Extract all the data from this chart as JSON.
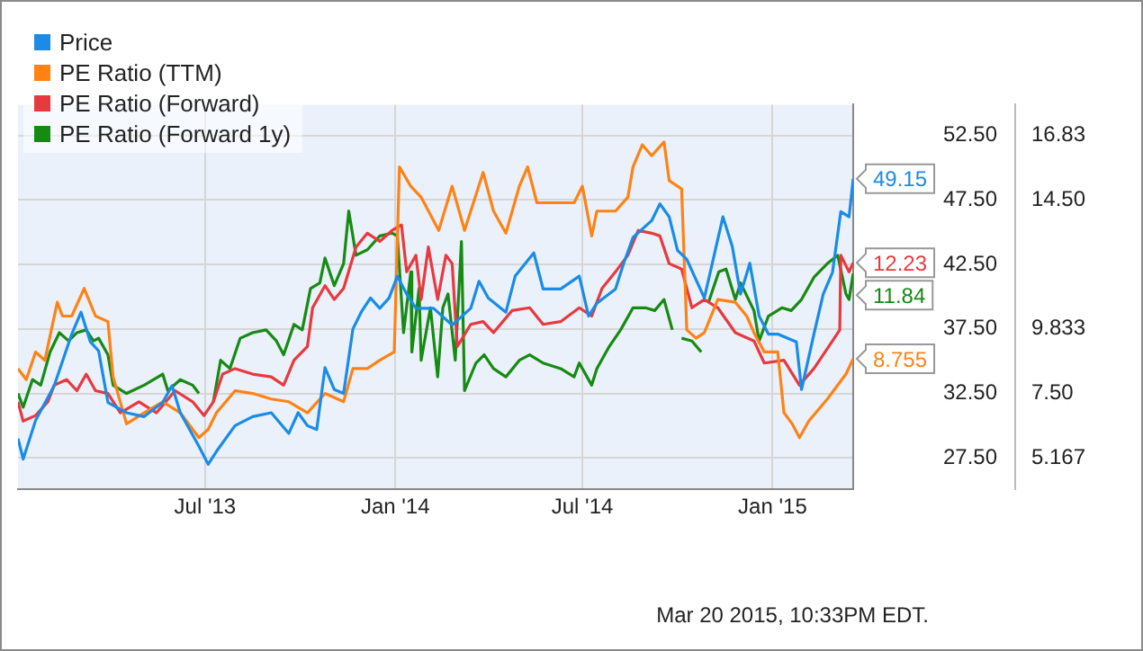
{
  "chart_data": {
    "type": "line",
    "xlim": [
      "2013-01-01",
      "2015-03-20"
    ],
    "xticks": [
      {
        "value": "2013-07-01",
        "label": "Jul '13"
      },
      {
        "value": "2014-01-01",
        "label": "Jan '14"
      },
      {
        "value": "2014-07-01",
        "label": "Jul '14"
      },
      {
        "value": "2015-01-01",
        "label": "Jan '15"
      }
    ],
    "ylim": [
      25.1,
      54.9
    ],
    "yticks": [
      {
        "value": 27.5,
        "label": "27.50"
      },
      {
        "value": 32.5,
        "label": "32.50"
      },
      {
        "value": 37.5,
        "label": "37.50"
      },
      {
        "value": 42.5,
        "label": "42.50"
      },
      {
        "value": 47.5,
        "label": "47.50"
      },
      {
        "value": 52.5,
        "label": "52.50"
      }
    ],
    "y2lim": [
      4.05,
      17.95
    ],
    "y2ticks": [
      5.167,
      {
        "value": 7.5,
        "label": "7.50"
      },
      9.833,
      {
        "value": 14.5,
        "label": "14.50"
      },
      16.83
    ],
    "grid": true,
    "legend": "top left",
    "annotations": [
      "Mar 20 2015, 10:33PM EDT."
    ],
    "series": [
      {
        "name": "Price",
        "color": "#1a8be6",
        "x": [
          "2013-01-01",
          "2013-01-06",
          "2013-01-18",
          "2013-02-05",
          "2013-02-22",
          "2013-03-03",
          "2013-03-12",
          "2013-03-20",
          "2013-03-29",
          "2013-04-16",
          "2013-05-03",
          "2013-05-21",
          "2013-05-30",
          "2013-06-07",
          "2013-06-25",
          "2013-07-04",
          "2013-07-12",
          "2013-07-30",
          "2013-08-16",
          "2013-09-03",
          "2013-09-20",
          "2013-09-29",
          "2013-10-08",
          "2013-10-17",
          "2013-10-25",
          "2013-11-03",
          "2013-11-12",
          "2013-11-21",
          "2013-11-29",
          "2013-12-08",
          "2013-12-17",
          "2013-12-26",
          "2014-01-03",
          "2014-01-12",
          "2014-01-21",
          "2014-02-07",
          "2014-02-25",
          "2014-03-15",
          "2014-03-23",
          "2014-04-01",
          "2014-04-18",
          "2014-04-27",
          "2014-05-15",
          "2014-05-24",
          "2014-06-10",
          "2014-06-28",
          "2014-07-07",
          "2014-07-15",
          "2014-08-02",
          "2014-08-10",
          "2014-08-19",
          "2014-09-06",
          "2014-09-14",
          "2014-09-23",
          "2014-10-01",
          "2014-10-10",
          "2014-10-27",
          "2014-11-14",
          "2014-11-23",
          "2014-12-01",
          "2014-12-10",
          "2014-12-19",
          "2014-12-28",
          "2015-01-06",
          "2015-01-24",
          "2015-01-29",
          "2015-02-10",
          "2015-02-19",
          "2015-02-28",
          "2015-03-08",
          "2015-03-16",
          "2015-03-20"
        ],
        "values": [
          29.0,
          27.4,
          30.4,
          33.1,
          37.1,
          38.8,
          36.5,
          35.8,
          31.8,
          31.0,
          30.7,
          31.8,
          33.1,
          31.0,
          28.4,
          27.0,
          28.0,
          30.0,
          30.7,
          31.0,
          29.4,
          31.0,
          30.0,
          29.7,
          34.5,
          32.8,
          32.5,
          37.5,
          38.8,
          39.9,
          39.1,
          39.9,
          41.6,
          40.2,
          39.1,
          39.1,
          37.8,
          39.1,
          41.2,
          39.9,
          38.8,
          41.6,
          43.4,
          40.6,
          40.6,
          41.6,
          38.5,
          39.5,
          40.6,
          42.6,
          44.6,
          45.9,
          47.2,
          46.2,
          43.6,
          42.9,
          39.9,
          46.2,
          43.9,
          40.2,
          42.6,
          38.5,
          37.1,
          37.1,
          36.5,
          32.8,
          37.1,
          40.2,
          41.9,
          46.6,
          46.2,
          49.15
        ],
        "value_labels": [
          null,
          null,
          null,
          null,
          null,
          null,
          null,
          null,
          null,
          null,
          null,
          null,
          null,
          null,
          null,
          null,
          null,
          null,
          null,
          null,
          null,
          null,
          null,
          null,
          null,
          null,
          null,
          null,
          null,
          null,
          null,
          null,
          null,
          null,
          null,
          null,
          null,
          null,
          null,
          null,
          null,
          null,
          null,
          null,
          null,
          null,
          null,
          null,
          null,
          null,
          null,
          null,
          null,
          null,
          null,
          null,
          null,
          null,
          null,
          null,
          null,
          null,
          null,
          null,
          null,
          null,
          null,
          null,
          null,
          null,
          null,
          "49.15"
        ]
      },
      {
        "name": "PE Ratio (TTM)",
        "color": "#ff8214",
        "axis": "y2",
        "x": [
          "2013-01-01",
          "2013-01-09",
          "2013-01-18",
          "2013-01-27",
          "2013-02-08",
          "2013-02-13",
          "2013-02-22",
          "2013-03-06",
          "2013-03-17",
          "2013-03-29",
          "2013-04-03",
          "2013-04-16",
          "2013-05-03",
          "2013-05-21",
          "2013-06-07",
          "2013-06-25",
          "2013-07-04",
          "2013-07-12",
          "2013-07-30",
          "2013-08-16",
          "2013-09-03",
          "2013-09-20",
          "2013-10-08",
          "2013-10-25",
          "2013-11-12",
          "2013-11-21",
          "2013-12-05",
          "2013-12-17",
          "2013-12-31",
          "2014-01-05",
          "2014-01-16",
          "2014-01-26",
          "2014-02-12",
          "2014-02-25",
          "2014-03-09",
          "2014-03-27",
          "2014-04-06",
          "2014-04-18",
          "2014-05-01",
          "2014-05-09",
          "2014-05-18",
          "2014-06-05",
          "2014-06-23",
          "2014-07-01",
          "2014-07-10",
          "2014-07-15",
          "2014-08-02",
          "2014-08-14",
          "2014-08-19",
          "2014-08-28",
          "2014-09-06",
          "2014-09-18",
          "2014-09-23",
          "2014-10-05",
          "2014-10-10",
          "2014-10-19",
          "2014-10-27",
          "2014-11-09",
          "2014-11-26",
          "2014-12-07",
          "2014-12-14",
          "2014-12-24",
          "2015-01-06",
          "2015-01-12",
          "2015-01-20",
          "2015-01-27",
          "2015-02-05",
          "2015-02-23",
          "2015-03-13",
          "2015-03-20"
        ],
        "values": [
          8.4,
          8.0,
          9.0,
          8.7,
          10.8,
          10.3,
          10.3,
          11.3,
          10.3,
          10.1,
          8.1,
          6.4,
          6.8,
          7.2,
          6.8,
          5.9,
          6.2,
          6.8,
          7.6,
          7.5,
          7.3,
          7.2,
          6.8,
          7.5,
          7.2,
          8.4,
          8.4,
          8.7,
          9.0,
          15.7,
          15.0,
          14.6,
          13.4,
          15.0,
          13.4,
          15.5,
          14.1,
          13.3,
          15.0,
          15.7,
          14.4,
          14.4,
          14.4,
          15.0,
          13.2,
          14.1,
          14.1,
          14.6,
          15.7,
          16.5,
          16.1,
          16.6,
          15.2,
          14.9,
          9.8,
          9.5,
          9.7,
          10.9,
          10.8,
          10.3,
          9.7,
          9.0,
          9.0,
          6.8,
          6.4,
          5.9,
          6.5,
          7.3,
          8.2,
          8.755
        ],
        "value_labels": [
          null,
          null,
          null,
          null,
          null,
          null,
          null,
          null,
          null,
          null,
          null,
          null,
          null,
          null,
          null,
          null,
          null,
          null,
          null,
          null,
          null,
          null,
          null,
          null,
          null,
          null,
          null,
          null,
          null,
          null,
          null,
          null,
          null,
          null,
          null,
          null,
          null,
          null,
          null,
          null,
          null,
          null,
          null,
          null,
          null,
          null,
          null,
          null,
          null,
          null,
          null,
          null,
          null,
          null,
          null,
          null,
          null,
          null,
          null,
          null,
          null,
          null,
          null,
          null,
          null,
          null,
          null,
          null,
          null,
          "8.755"
        ]
      },
      {
        "name": "PE Ratio (Forward)",
        "color": "#e8393f",
        "axis": "y2",
        "x": [
          "2013-01-01",
          "2013-01-06",
          "2013-01-18",
          "2013-01-30",
          "2013-02-05",
          "2013-02-17",
          "2013-02-27",
          "2013-03-08",
          "2013-03-17",
          "2013-03-29",
          "2013-04-10",
          "2013-04-28",
          "2013-05-15",
          "2013-06-02",
          "2013-06-19",
          "2013-06-30",
          "2013-07-09",
          "2013-07-18",
          "2013-07-30",
          "2013-08-16",
          "2013-09-03",
          "2013-09-15",
          "2013-09-25",
          "2013-10-08",
          "2013-10-13",
          "2013-10-25",
          "2013-11-03",
          "2013-11-12",
          "2013-11-24",
          "2013-12-05",
          "2013-12-17",
          "2013-12-29",
          "2014-01-07",
          "2014-01-12",
          "2014-01-21",
          "2014-01-26",
          "2014-02-02",
          "2014-02-11",
          "2014-02-19",
          "2014-02-25",
          "2014-03-02",
          "2014-03-15",
          "2014-03-27",
          "2014-04-06",
          "2014-04-24",
          "2014-05-11",
          "2014-05-24",
          "2014-06-10",
          "2014-06-28",
          "2014-07-10",
          "2014-07-20",
          "2014-08-02",
          "2014-08-14",
          "2014-08-24",
          "2014-09-06",
          "2014-09-14",
          "2014-09-23",
          "2014-10-05",
          "2014-10-15",
          "2014-10-27",
          "2014-11-09",
          "2014-11-26",
          "2014-12-14",
          "2014-12-24",
          "2015-01-12",
          "2015-01-27",
          "2015-02-10",
          "2015-02-28",
          "2015-03-07",
          "2015-03-08",
          "2015-03-16",
          "2015-03-20"
        ],
        "values": [
          7.2,
          6.5,
          6.7,
          7.2,
          7.8,
          8.0,
          7.6,
          8.2,
          7.6,
          7.5,
          6.8,
          7.2,
          6.8,
          7.6,
          7.2,
          6.7,
          7.2,
          8.2,
          8.4,
          8.2,
          8.1,
          7.8,
          8.7,
          9.2,
          10.6,
          11.4,
          10.9,
          11.3,
          12.8,
          13.3,
          13.0,
          13.4,
          13.6,
          11.9,
          12.5,
          10.9,
          12.8,
          10.9,
          12.5,
          12.2,
          9.2,
          10.0,
          10.1,
          9.7,
          10.5,
          10.6,
          10.0,
          10.1,
          10.6,
          10.3,
          11.3,
          11.9,
          12.5,
          13.4,
          13.3,
          13.2,
          12.2,
          12.0,
          10.6,
          10.9,
          10.6,
          9.7,
          9.4,
          8.6,
          8.7,
          7.8,
          8.4,
          9.4,
          9.8,
          12.5,
          11.9,
          12.23
        ],
        "value_labels": [
          null,
          null,
          null,
          null,
          null,
          null,
          null,
          null,
          null,
          null,
          null,
          null,
          null,
          null,
          null,
          null,
          null,
          null,
          null,
          null,
          null,
          null,
          null,
          null,
          null,
          null,
          null,
          null,
          null,
          null,
          null,
          null,
          null,
          null,
          null,
          null,
          null,
          null,
          null,
          null,
          null,
          null,
          null,
          null,
          null,
          null,
          null,
          null,
          null,
          null,
          null,
          null,
          null,
          null,
          null,
          null,
          null,
          null,
          null,
          null,
          null,
          null,
          null,
          null,
          null,
          null,
          null,
          null,
          null,
          null,
          null,
          "12.23"
        ]
      },
      {
        "name": "PE Ratio (Forward 1y)",
        "color": "#178a13",
        "axis": "y2",
        "x": [
          "2013-01-01",
          "2013-01-06",
          "2013-01-15",
          "2013-01-23",
          "2013-02-01",
          "2013-02-10",
          "2013-02-19",
          "2013-02-27",
          "2013-03-08",
          "2013-03-15",
          "2013-03-20",
          "2013-03-29",
          "2013-04-03",
          "2013-04-16",
          "2013-05-03",
          "2013-05-21",
          "2013-05-26",
          "2013-06-07",
          "2013-06-19",
          "2013-06-25",
          "2013-06-30",
          "2013-07-09",
          "2013-07-16",
          "2013-07-25",
          "2013-08-04",
          "2013-08-16",
          "2013-08-29",
          "2013-09-08",
          "2013-09-15",
          "2013-09-25",
          "2013-10-03",
          "2013-10-11",
          "2013-10-20",
          "2013-10-25",
          "2013-11-03",
          "2013-11-12",
          "2013-11-17",
          "2013-11-24",
          "2013-12-05",
          "2013-12-17",
          "2013-12-29",
          "2014-01-03",
          "2014-01-09",
          "2014-01-16",
          "2014-01-17",
          "2014-01-24",
          "2014-01-26",
          "2014-02-04",
          "2014-02-11",
          "2014-02-16",
          "2014-02-21",
          "2014-02-28",
          "2014-03-06",
          "2014-03-09",
          "2014-03-20",
          "2014-03-28",
          "2014-04-06",
          "2014-04-18",
          "2014-05-01",
          "2014-05-11",
          "2014-05-24",
          "2014-06-10",
          "2014-06-23",
          "2014-06-28",
          "2014-07-10",
          "2014-07-15",
          "2014-07-27",
          "2014-08-07",
          "2014-08-19",
          "2014-08-31",
          "2014-09-09",
          "2014-09-18",
          "2014-09-26",
          "2014-09-30",
          "2014-10-05",
          "2014-10-15",
          "2014-10-24",
          "2014-10-27",
          "2014-10-31",
          "2014-11-10",
          "2014-11-17",
          "2014-11-26",
          "2014-12-01",
          "2014-12-14",
          "2014-12-19",
          "2014-12-28",
          "2015-01-10",
          "2015-01-19",
          "2015-01-29",
          "2015-02-10",
          "2015-02-23",
          "2015-03-05",
          "2015-03-13",
          "2015-03-16",
          "2015-03-20"
        ],
        "values": [
          7.5,
          7.0,
          8.0,
          7.8,
          9.0,
          9.7,
          9.4,
          9.7,
          9.8,
          9.4,
          9.5,
          8.9,
          7.8,
          7.5,
          7.8,
          8.2,
          7.6,
          8.0,
          7.8,
          7.5,
          null,
          7.2,
          8.7,
          8.4,
          9.5,
          9.7,
          9.8,
          9.4,
          8.9,
          10.0,
          9.8,
          11.3,
          11.5,
          12.4,
          11.4,
          12.2,
          14.1,
          12.5,
          12.7,
          13.2,
          13.3,
          13.2,
          9.7,
          11.9,
          9.0,
          11.3,
          8.7,
          10.6,
          8.1,
          10.6,
          11.1,
          8.7,
          13.0,
          7.6,
          8.6,
          8.9,
          8.4,
          8.1,
          8.7,
          8.9,
          8.6,
          8.4,
          8.1,
          8.6,
          7.8,
          8.4,
          9.2,
          9.8,
          10.6,
          10.6,
          10.5,
          10.9,
          9.8,
          null,
          9.5,
          9.4,
          9.0,
          null,
          10.8,
          11.9,
          12.0,
          10.9,
          11.5,
          10.5,
          9.4,
          10.3,
          10.6,
          10.5,
          10.9,
          11.7,
          12.2,
          12.5,
          11.1,
          10.9,
          11.84
        ],
        "value_labels": [
          null,
          null,
          null,
          null,
          null,
          null,
          null,
          null,
          null,
          null,
          null,
          null,
          null,
          null,
          null,
          null,
          null,
          null,
          null,
          null,
          null,
          null,
          null,
          null,
          null,
          null,
          null,
          null,
          null,
          null,
          null,
          null,
          null,
          null,
          null,
          null,
          null,
          null,
          null,
          null,
          null,
          null,
          null,
          null,
          null,
          null,
          null,
          null,
          null,
          null,
          null,
          null,
          null,
          null,
          null,
          null,
          null,
          null,
          null,
          null,
          null,
          null,
          null,
          null,
          null,
          null,
          null,
          null,
          null,
          null,
          null,
          null,
          null,
          null,
          null,
          null,
          null,
          null,
          null,
          null,
          null,
          null,
          null,
          null,
          null,
          null,
          null,
          null,
          null,
          null,
          null,
          null,
          null,
          null,
          "11.84"
        ]
      }
    ]
  }
}
